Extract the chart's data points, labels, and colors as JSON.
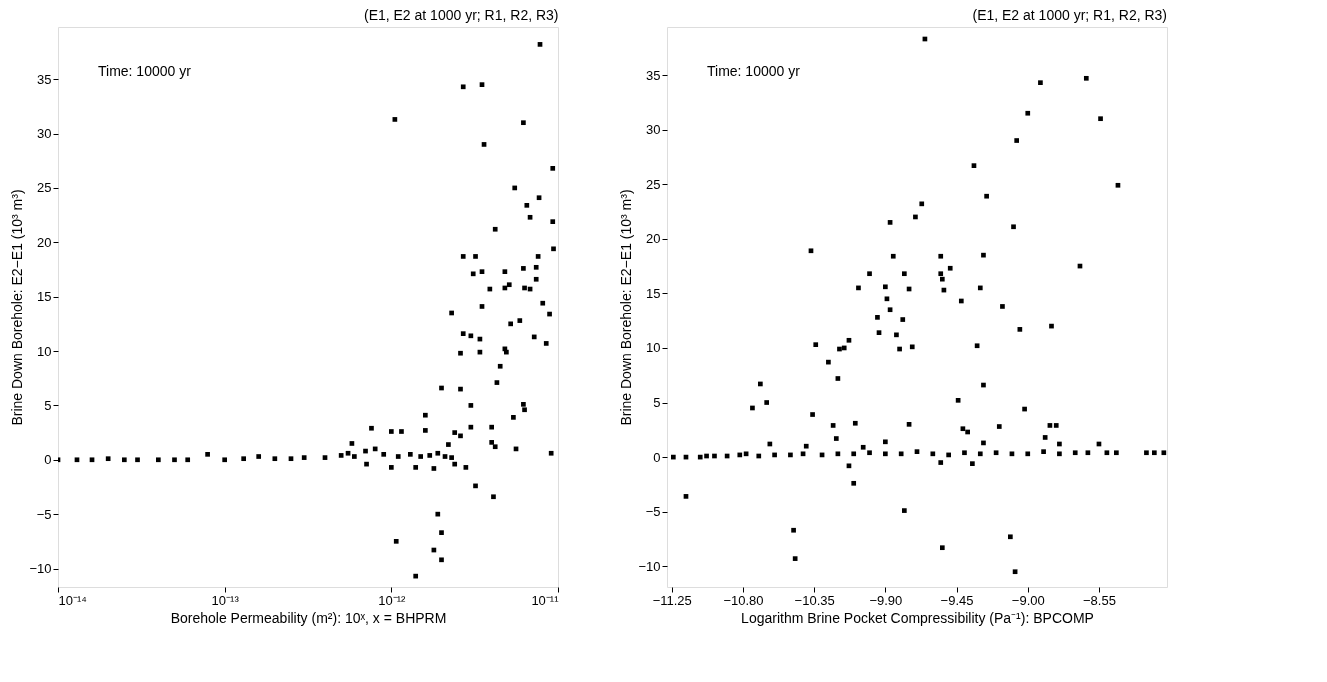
{
  "chart_data": [
    {
      "type": "scatter",
      "title": "(E1, E2 at 1000 yr; R1, R2, R3)",
      "xlabel": "Borehole Permeability (m²): 10ˣ, x = BHPRM",
      "ylabel": "Brine Down Borehole: E2−E1 (10³ m³)",
      "annotations": [
        "Time: 10000 yr"
      ],
      "log": "x",
      "marker": "square",
      "grid": false,
      "xlim": [
        1e-14,
        1e-11
      ],
      "xticks": [
        {
          "value": 1e-14,
          "label": "10⁻¹⁴"
        },
        {
          "value": 1e-13,
          "label": "10⁻¹³"
        },
        {
          "value": 1e-12,
          "label": "10⁻¹²"
        },
        {
          "value": 1e-11,
          "label": "10⁻¹¹"
        }
      ],
      "ylim": [
        -11.7,
        39.8
      ],
      "yticks": [
        -10,
        -5,
        0,
        5,
        10,
        15,
        20,
        25,
        30,
        35
      ],
      "series": [
        {
          "color": "#000000",
          "x": [
            1e-14,
            1.3e-14,
            1.6e-14,
            2e-14,
            2.5e-14,
            3e-14,
            4e-14,
            5e-14,
            6e-14,
            7.9e-14,
            1e-13,
            1.3e-13,
            1.6e-13,
            2e-13,
            2.5e-13,
            3e-13,
            4e-13,
            5e-13,
            5.5e-13,
            6e-13,
            7e-13,
            8e-13,
            9e-13,
            1.1e-12,
            1.3e-12,
            1.5e-12,
            1.7e-12,
            1.9e-12,
            2.1e-12,
            2.3e-12,
            7.8e-12,
            2.7e-12,
            3.5e-12,
            1.05e-12,
            6.2e-12,
            3.6e-12,
            9.3e-12,
            5.5e-12,
            7.7e-12,
            6.5e-12,
            6.8e-12,
            9.3e-12,
            4.2e-12,
            9.4e-12,
            2.7e-12,
            3.2e-12,
            7.6e-12,
            3.1e-12,
            3.5e-12,
            4.8e-12,
            6.2e-12,
            7.4e-12,
            7.4e-12,
            3.9e-12,
            4.8e-12,
            5.1e-12,
            6.3e-12,
            6.8e-12,
            8.1e-12,
            8.9e-12,
            2.3e-12,
            3.5e-12,
            2.7e-12,
            3e-12,
            3.4e-12,
            2.6e-12,
            3.4e-12,
            5.2e-12,
            5.9e-12,
            4.8e-12,
            4.9e-12,
            7.2e-12,
            8.5e-12,
            4.5e-12,
            4.3e-12,
            2e-12,
            2.6e-12,
            3e-12,
            1.6e-12,
            6.2e-12,
            6.3e-12,
            5.4e-12,
            3e-12,
            4e-12,
            7.6e-13,
            1e-12,
            1.15e-12,
            1.6e-12,
            2.4e-12,
            2.6e-12,
            5.8e-13,
            2.2e-12,
            4e-12,
            4.2e-12,
            5.6e-12,
            9.1e-12,
            2.4e-12,
            2.8e-12,
            1.8e-12,
            1.4e-12,
            1e-12,
            7.1e-13,
            3.2e-12,
            4.1e-12,
            1.9e-12,
            2e-12,
            1.07e-12,
            1.8e-12,
            2e-12,
            1.4e-12
          ],
          "values": [
            0,
            0,
            0,
            0.1,
            0,
            0,
            0,
            0,
            0,
            0.5,
            0,
            0.1,
            0.3,
            0.1,
            0.1,
            0.2,
            0.2,
            0.4,
            0.6,
            0.3,
            0.8,
            1.0,
            0.5,
            0.3,
            0.5,
            0.3,
            0.4,
            0.6,
            0.3,
            0.2,
            38.2,
            34.3,
            34.5,
            31.3,
            31.0,
            29.0,
            26.8,
            25.0,
            24.1,
            23.4,
            22.3,
            21.9,
            21.2,
            19.4,
            18.7,
            18.7,
            18.7,
            17.1,
            17.3,
            17.3,
            17.6,
            17.7,
            16.6,
            15.7,
            15.8,
            16.1,
            15.8,
            15.7,
            14.4,
            13.4,
            13.5,
            14.1,
            11.6,
            11.4,
            11.1,
            9.8,
            9.9,
            12.5,
            12.8,
            10.2,
            9.9,
            11.3,
            10.7,
            8.6,
            7.1,
            6.6,
            6.5,
            5.0,
            4.1,
            5.1,
            4.6,
            3.9,
            3.0,
            3.0,
            2.9,
            2.6,
            2.6,
            2.7,
            2.5,
            2.2,
            1.5,
            1.4,
            1.6,
            1.2,
            1.0,
            0.6,
            -0.4,
            -0.7,
            -0.8,
            -0.7,
            -0.7,
            -0.4,
            -2.4,
            -3.4,
            -5.0,
            -6.7,
            -7.5,
            -8.3,
            -9.2,
            -10.7
          ]
        }
      ]
    },
    {
      "type": "scatter",
      "title": "(E1, E2 at 1000 yr; R1, R2, R3)",
      "xlabel": "Logarithm Brine Pocket Compressibility (Pa⁻¹): BPCOMP",
      "ylabel": "Brine Down Borehole: E2−E1 (10³ m³)",
      "annotations": [
        "Time: 10000 yr"
      ],
      "marker": "square",
      "grid": false,
      "xlim": [
        -11.28,
        -8.12
      ],
      "xticks": [
        {
          "value": -11.25,
          "label": "−11.25"
        },
        {
          "value": -10.8,
          "label": "−10.80"
        },
        {
          "value": -10.35,
          "label": "−10.35"
        },
        {
          "value": -9.9,
          "label": "−9.90"
        },
        {
          "value": -9.45,
          "label": "−9.45"
        },
        {
          "value": -9.0,
          "label": "−9.00"
        },
        {
          "value": -8.55,
          "label": "−8.55"
        }
      ],
      "ylim": [
        -11.9,
        39.4
      ],
      "yticks": [
        -10,
        -5,
        0,
        5,
        10,
        15,
        20,
        25,
        30,
        35
      ],
      "series": [
        {
          "color": "#000000",
          "x": [
            -11.24,
            -11.16,
            -11.07,
            -11.03,
            -10.98,
            -10.9,
            -10.82,
            -10.78,
            -10.7,
            -10.6,
            -10.5,
            -10.42,
            -10.3,
            -10.2,
            -10.1,
            -10.0,
            -9.9,
            -9.8,
            -9.7,
            -9.6,
            -9.5,
            -9.4,
            -9.3,
            -9.2,
            -9.1,
            -9.0,
            -8.9,
            -8.8,
            -8.7,
            -8.62,
            -8.5,
            -8.44,
            -8.25,
            -8.2,
            -8.14,
            -9.65,
            -8.92,
            -8.63,
            -9.0,
            -8.54,
            -9.07,
            -9.34,
            -8.43,
            -9.26,
            -9.67,
            -9.71,
            -9.87,
            -9.09,
            -10.37,
            -9.85,
            -9.55,
            -9.28,
            -8.67,
            -10.0,
            -9.78,
            -9.55,
            -9.49,
            -9.54,
            -10.07,
            -9.9,
            -9.75,
            -9.53,
            -9.3,
            -9.89,
            -9.87,
            -9.42,
            -9.16,
            -9.95,
            -9.79,
            -9.94,
            -9.83,
            -9.05,
            -8.85,
            -10.13,
            -10.16,
            -10.19,
            -10.34,
            -9.81,
            -9.73,
            -9.32,
            -10.26,
            -10.2,
            -10.69,
            -9.28,
            -10.65,
            -10.74,
            -9.44,
            -9.02,
            -10.36,
            -10.09,
            -9.75,
            -10.23,
            -9.41,
            -9.38,
            -9.18,
            -8.86,
            -8.82,
            -8.89,
            -10.21,
            -10.63,
            -8.8,
            -9.28,
            -9.9,
            -8.55,
            -10.4,
            -10.04,
            -9.55,
            -9.35,
            -10.13,
            -10.1,
            -11.16,
            -9.78,
            -10.48,
            -9.11,
            -9.54,
            -10.47,
            -9.08
          ],
          "values": [
            0,
            0,
            0,
            0.1,
            0.1,
            0.1,
            0.2,
            0.3,
            0.1,
            0.2,
            0.2,
            0.3,
            0.2,
            0.3,
            0.3,
            0.4,
            0.3,
            0.3,
            0.5,
            0.3,
            0.2,
            0.4,
            0.3,
            0.4,
            0.3,
            0.3,
            0.5,
            0.3,
            0.4,
            0.4,
            0.4,
            0.4,
            0.4,
            0.4,
            0.4,
            38.3,
            34.3,
            34.7,
            31.5,
            31.0,
            29.0,
            26.7,
            24.9,
            23.9,
            23.2,
            22.0,
            21.5,
            21.1,
            18.9,
            18.4,
            18.4,
            18.5,
            17.5,
            16.8,
            16.8,
            16.8,
            17.3,
            16.3,
            15.5,
            15.6,
            15.4,
            15.3,
            15.5,
            14.5,
            13.5,
            14.3,
            13.8,
            12.8,
            12.6,
            11.4,
            11.2,
            11.7,
            12.0,
            10.7,
            10.0,
            9.9,
            10.3,
            9.9,
            10.1,
            10.2,
            8.7,
            7.2,
            6.7,
            6.6,
            5.0,
            4.5,
            5.2,
            4.4,
            3.9,
            3.1,
            3.0,
            2.9,
            2.6,
            2.3,
            2.8,
            2.9,
            2.9,
            1.8,
            1.7,
            1.2,
            1.2,
            1.3,
            1.4,
            1.2,
            1.0,
            0.9,
            -0.5,
            -0.6,
            -0.8,
            -2.4,
            -3.6,
            -4.9,
            -6.7,
            -7.3,
            -8.3,
            -9.3,
            -10.5
          ]
        }
      ]
    }
  ]
}
